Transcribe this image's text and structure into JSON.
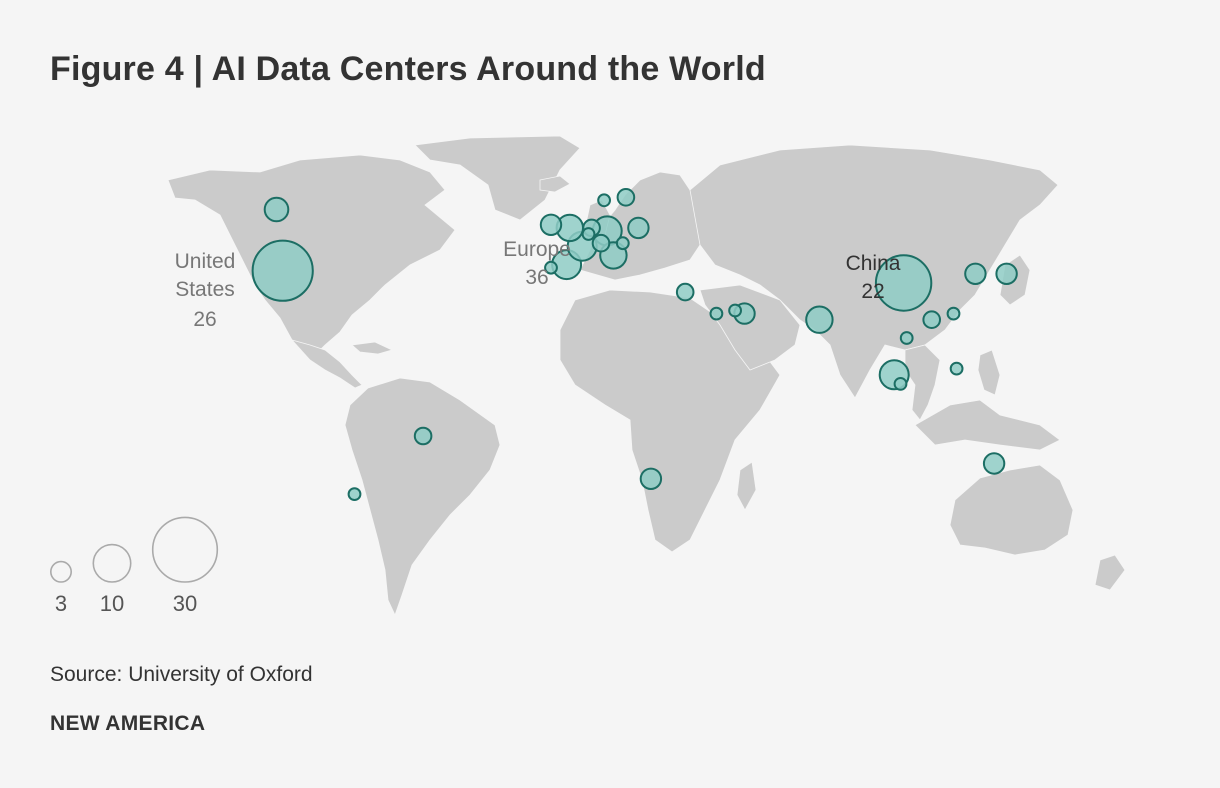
{
  "title": "Figure 4 | AI Data Centers Around the World",
  "source": "Source: University of Oxford",
  "brand": "NEW AMERICA",
  "colors": {
    "background": "#f5f5f5",
    "land": "#cbcbcb",
    "bubble_fill": "#8fcdc6",
    "bubble_stroke": "#1c6e64",
    "legend_stroke": "#aaaaaa"
  },
  "chart_data": {
    "type": "bubble-map",
    "legend": {
      "sizes": [
        {
          "value": 3,
          "label": "3"
        },
        {
          "value": 10,
          "label": "10"
        },
        {
          "value": 30,
          "label": "30"
        }
      ]
    },
    "region_totals": [
      {
        "region": "United States",
        "lines": [
          "United",
          "States"
        ],
        "total": "26"
      },
      {
        "region": "Europe",
        "lines": [
          "Europe"
        ],
        "total": "36"
      },
      {
        "region": "China",
        "lines": [
          "China"
        ],
        "total": "22"
      }
    ],
    "locations": [
      {
        "name": "Canada",
        "lon": -96,
        "lat": 58,
        "count": 4
      },
      {
        "name": "United States",
        "lon": -94,
        "lat": 38,
        "count": 26
      },
      {
        "name": "Brazil",
        "lon": -49,
        "lat": -16,
        "count": 2
      },
      {
        "name": "Chile",
        "lon": -71,
        "lat": -35,
        "count": 1
      },
      {
        "name": "Ireland",
        "lon": -8,
        "lat": 53,
        "count": 3
      },
      {
        "name": "United Kingdom",
        "lon": -2,
        "lat": 52,
        "count": 5
      },
      {
        "name": "Portugal",
        "lon": -8,
        "lat": 39,
        "count": 1
      },
      {
        "name": "Spain",
        "lon": -3,
        "lat": 40,
        "count": 6
      },
      {
        "name": "France",
        "lon": 2,
        "lat": 46,
        "count": 6
      },
      {
        "name": "Netherlands",
        "lon": 5,
        "lat": 52,
        "count": 2
      },
      {
        "name": "Belgium",
        "lon": 4,
        "lat": 50,
        "count": 1
      },
      {
        "name": "Germany",
        "lon": 10,
        "lat": 51,
        "count": 6
      },
      {
        "name": "Switzerland",
        "lon": 8,
        "lat": 47,
        "count": 2
      },
      {
        "name": "Italy",
        "lon": 12,
        "lat": 43,
        "count": 5
      },
      {
        "name": "Austria",
        "lon": 15,
        "lat": 47,
        "count": 1
      },
      {
        "name": "Poland",
        "lon": 20,
        "lat": 52,
        "count": 3
      },
      {
        "name": "Norway",
        "lon": 9,
        "lat": 61,
        "count": 1
      },
      {
        "name": "Sweden",
        "lon": 16,
        "lat": 62,
        "count": 2
      },
      {
        "name": "Israel",
        "lon": 35,
        "lat": 31,
        "count": 2
      },
      {
        "name": "Saudi Arabia",
        "lon": 45,
        "lat": 24,
        "count": 1
      },
      {
        "name": "Qatar",
        "lon": 51,
        "lat": 25,
        "count": 1
      },
      {
        "name": "UAE",
        "lon": 54,
        "lat": 24,
        "count": 3
      },
      {
        "name": "India",
        "lon": 78,
        "lat": 22,
        "count": 5
      },
      {
        "name": "China",
        "lon": 105,
        "lat": 34,
        "count": 22
      },
      {
        "name": "South Korea",
        "lon": 128,
        "lat": 37,
        "count": 3
      },
      {
        "name": "Japan",
        "lon": 138,
        "lat": 37,
        "count": 3
      },
      {
        "name": "Hong Kong",
        "lon": 114,
        "lat": 22,
        "count": 2
      },
      {
        "name": "Taiwan",
        "lon": 121,
        "lat": 24,
        "count": 1
      },
      {
        "name": "Vietnam",
        "lon": 106,
        "lat": 16,
        "count": 1
      },
      {
        "name": "Malaysia",
        "lon": 102,
        "lat": 4,
        "count": 6
      },
      {
        "name": "Singapore",
        "lon": 104,
        "lat": 1,
        "count": 1
      },
      {
        "name": "Philippines",
        "lon": 122,
        "lat": 6,
        "count": 1
      },
      {
        "name": "South Africa",
        "lon": 24,
        "lat": -30,
        "count": 3
      },
      {
        "name": "Australia",
        "lon": 134,
        "lat": -25,
        "count": 3
      }
    ]
  }
}
